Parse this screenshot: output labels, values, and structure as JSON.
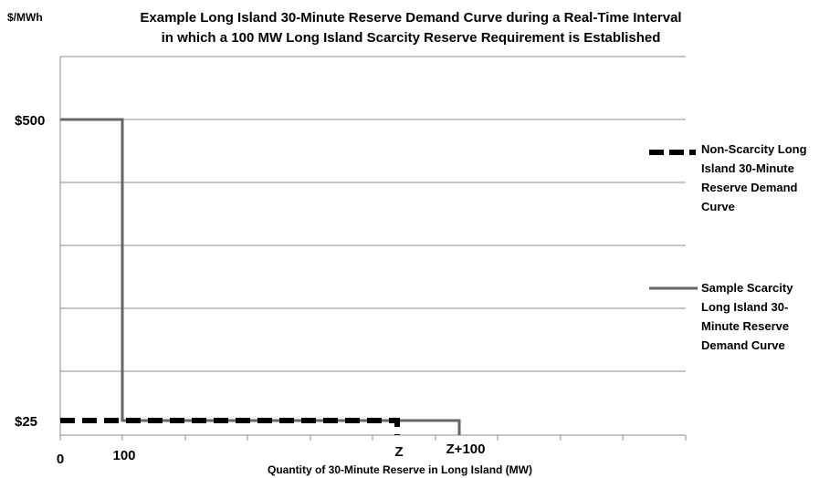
{
  "chart_data": {
    "type": "line",
    "title_lines": [
      "Example Long Island 30-Minute Reserve Demand Curve during a Real-Time Interval",
      "in which a 100 MW Long Island Scarcity Reserve Requirement is Established"
    ],
    "ylabel": "$/MWh",
    "xlabel": "Quantity of 30-Minute Reserve in Long Island (MW)",
    "x_ticks": [
      {
        "label": "0",
        "position": "origin"
      },
      {
        "label": "100",
        "position": "scarcity requirement"
      },
      {
        "label": "Z",
        "position": "non-scarcity requirement"
      },
      {
        "label": "Z+100",
        "position": "Z plus 100"
      }
    ],
    "y_ticks": [
      "$500",
      "$25"
    ],
    "y_values": [
      500,
      25
    ],
    "series": [
      {
        "name": "Non-Scarcity Long Island 30-Minute Reserve Demand Curve",
        "style": "dashed",
        "color": "#000000",
        "points": [
          [
            "0",
            25
          ],
          [
            "Z",
            25
          ],
          [
            "Z",
            0
          ]
        ]
      },
      {
        "name": "Sample Scarcity Long Island 30-Minute Reserve Demand Curve",
        "style": "solid",
        "color": "#666666",
        "points": [
          [
            "0",
            500
          ],
          [
            "100",
            500
          ],
          [
            "100",
            25
          ],
          [
            "Z+100",
            25
          ],
          [
            "Z+100",
            0
          ]
        ]
      }
    ],
    "legend": [
      {
        "lines": [
          "Non-Scarcity Long",
          "Island 30-Minute",
          "Reserve Demand",
          "Curve"
        ],
        "style": "dashed"
      },
      {
        "lines": [
          "Sample Scarcity",
          "Long Island 30-",
          "Minute Reserve",
          "Demand Curve"
        ],
        "style": "solid"
      }
    ],
    "legend_position": "right",
    "grid": "horizontal"
  }
}
